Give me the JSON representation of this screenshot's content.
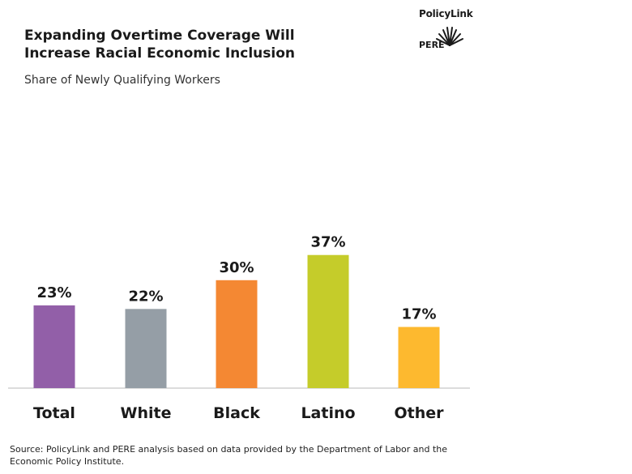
{
  "header": {
    "title_line1": "Expanding Overtime Coverage Will",
    "title_line2": "Increase Racial Economic Inclusion",
    "subtitle": "Share of Newly Qualifying Workers"
  },
  "logo": {
    "brand": "PolicyLink",
    "sub": "PERE"
  },
  "source": {
    "line1": "Source: PolicyLink and PERE analysis based on data provided by the Department of Labor and the",
    "line2": "Economic Policy Institute."
  },
  "chart_data": {
    "type": "bar",
    "categories": [
      "Total",
      "White",
      "Black",
      "Latino",
      "Other"
    ],
    "values": [
      23,
      22,
      30,
      37,
      17
    ],
    "data_labels": [
      "23%",
      "22%",
      "30%",
      "37%",
      "17%"
    ],
    "colors": [
      "#925fa8",
      "#959ea6",
      "#f48833",
      "#c5cc2a",
      "#fdb92f"
    ],
    "title": "Expanding Overtime Coverage Will Increase Racial Economic Inclusion",
    "subtitle": "Share of Newly Qualifying Workers",
    "ylim": [
      0,
      40
    ],
    "grid": false,
    "legend": "none"
  }
}
